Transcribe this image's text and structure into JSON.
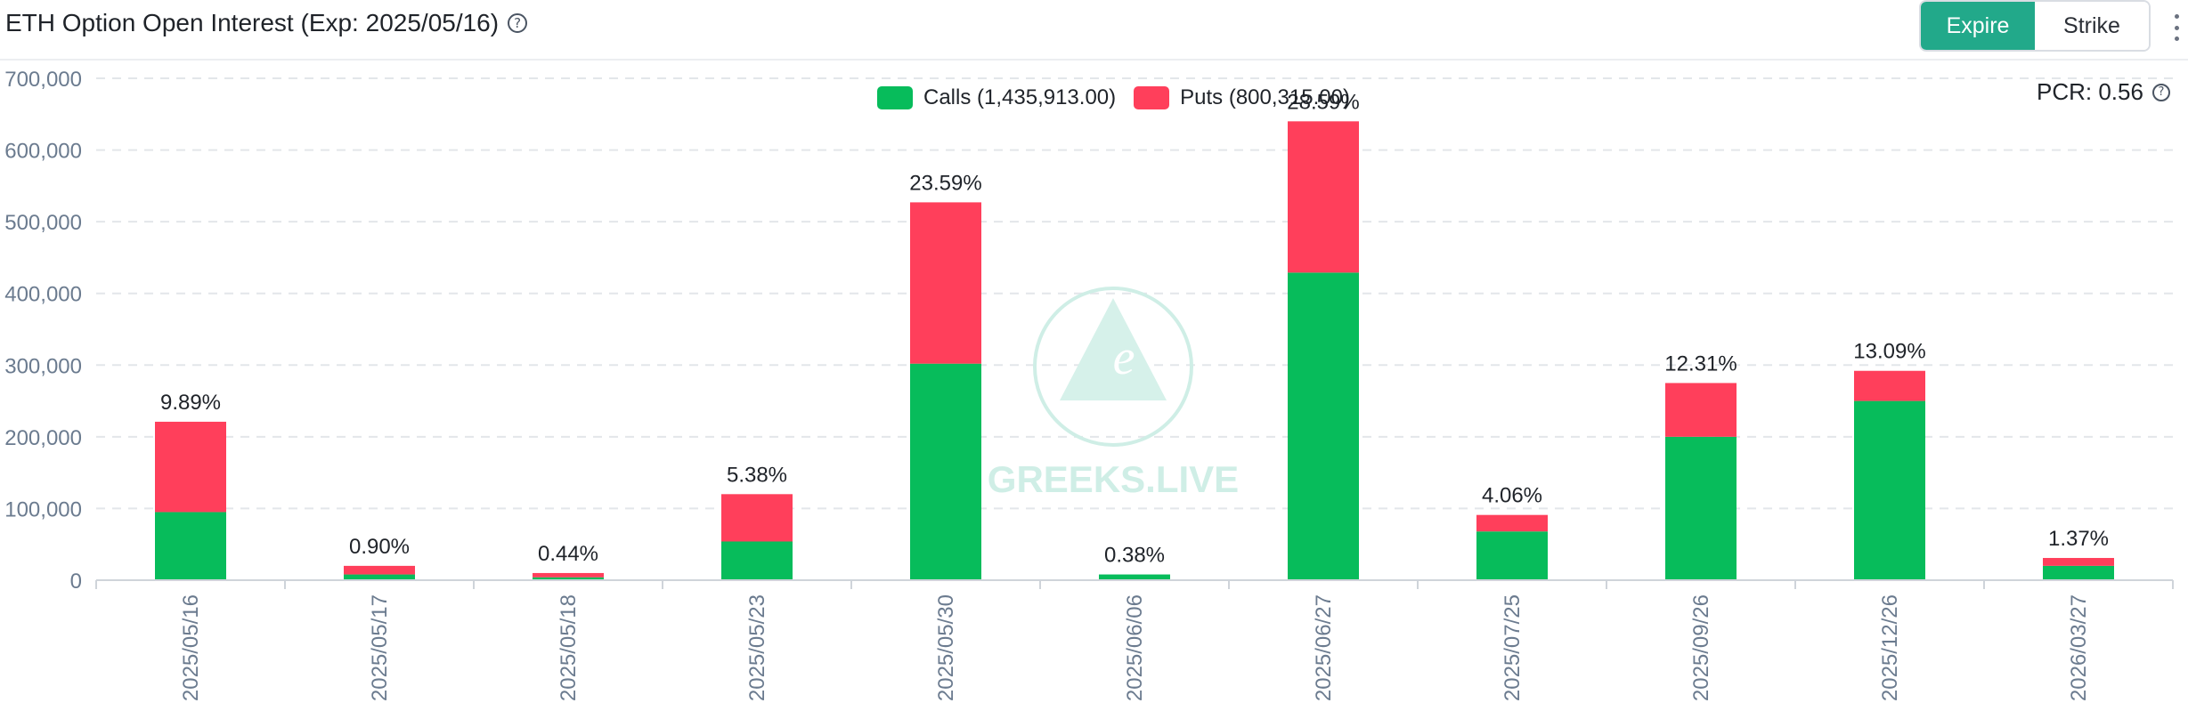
{
  "header": {
    "title": "ETH Option Open Interest (Exp: 2025/05/16)",
    "help_glyph": "?",
    "toggle": {
      "expire_label": "Expire",
      "strike_label": "Strike",
      "active": "expire"
    }
  },
  "pcr": {
    "label": "PCR: 0.56",
    "help_glyph": "?"
  },
  "legend": {
    "calls_label": "Calls (1,435,913.00)",
    "puts_label": "Puts (800,315.00)"
  },
  "colors": {
    "calls": "#07bc5b",
    "puts": "#ff3f5b",
    "accent": "#22a98a",
    "grid": "#e3e6ea",
    "axis_text": "#6b7b8f",
    "watermark": "#cfeee6"
  },
  "watermark": {
    "text": "GREEKS.LIVE",
    "letter": "e"
  },
  "chart_data": {
    "type": "bar",
    "stacked": true,
    "categories": [
      "2025/05/16",
      "2025/05/17",
      "2025/05/18",
      "2025/05/23",
      "2025/05/30",
      "2025/06/06",
      "2025/06/27",
      "2025/07/25",
      "2025/09/26",
      "2025/12/26",
      "2026/03/27"
    ],
    "series": [
      {
        "name": "Calls (1,435,913.00)",
        "values": [
          95000,
          8000,
          4000,
          54000,
          302000,
          8000,
          429000,
          68000,
          200000,
          250000,
          20000
        ]
      },
      {
        "name": "Puts (800,315.00)",
        "values": [
          126000,
          12000,
          6000,
          66000,
          225000,
          0,
          211000,
          23000,
          75000,
          42000,
          11000
        ]
      }
    ],
    "data_labels": [
      "9.89%",
      "0.90%",
      "0.44%",
      "5.38%",
      "23.59%",
      "0.38%",
      "28.59%",
      "4.06%",
      "12.31%",
      "13.09%",
      "1.37%"
    ],
    "y_ticks": [
      "0",
      "100,000",
      "200,000",
      "300,000",
      "400,000",
      "500,000",
      "600,000",
      "700,000"
    ],
    "ylim": [
      0,
      700000
    ],
    "grid": true,
    "legend_position": "top-center"
  }
}
